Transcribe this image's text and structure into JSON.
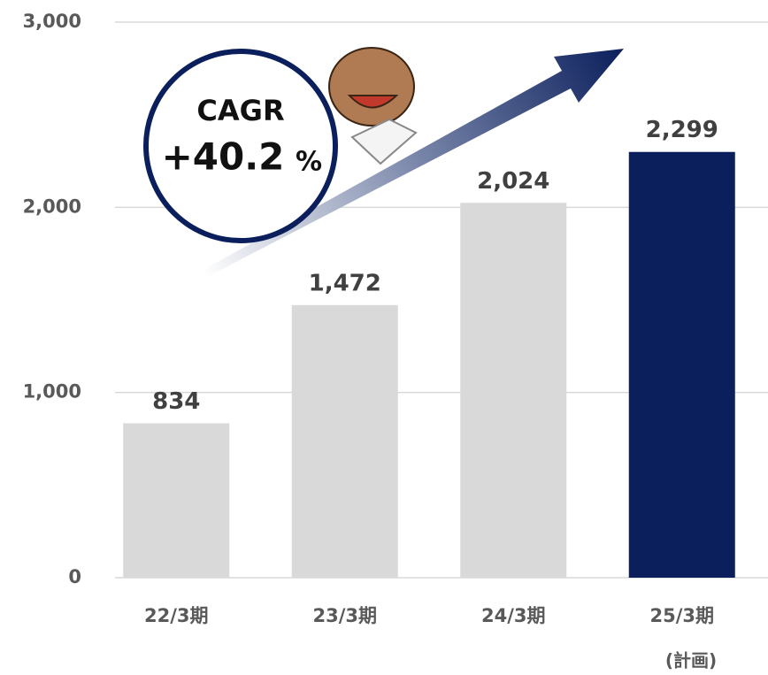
{
  "chart_data": {
    "type": "bar",
    "categories": [
      "22/3期",
      "23/3期",
      "24/3期",
      "25/3期"
    ],
    "category_note": "(計画)",
    "values": [
      834,
      1472,
      2024,
      2299
    ],
    "value_labels": [
      "834",
      "1,472",
      "2,024",
      "2,299"
    ],
    "colors": [
      "#d9d9d9",
      "#d9d9d9",
      "#d9d9d9",
      "#0b1f5c"
    ],
    "ylim": [
      0,
      3000
    ],
    "yticks": [
      0,
      {
        "value": 1000,
        "label": "1,000"
      },
      {
        "value": 2000,
        "label": "2,000"
      },
      {
        "value": 3000,
        "label": "3,000"
      }
    ],
    "grid": true,
    "cagr_title": "CAGR",
    "cagr_value": "+40.2",
    "cagr_unit": "%"
  }
}
